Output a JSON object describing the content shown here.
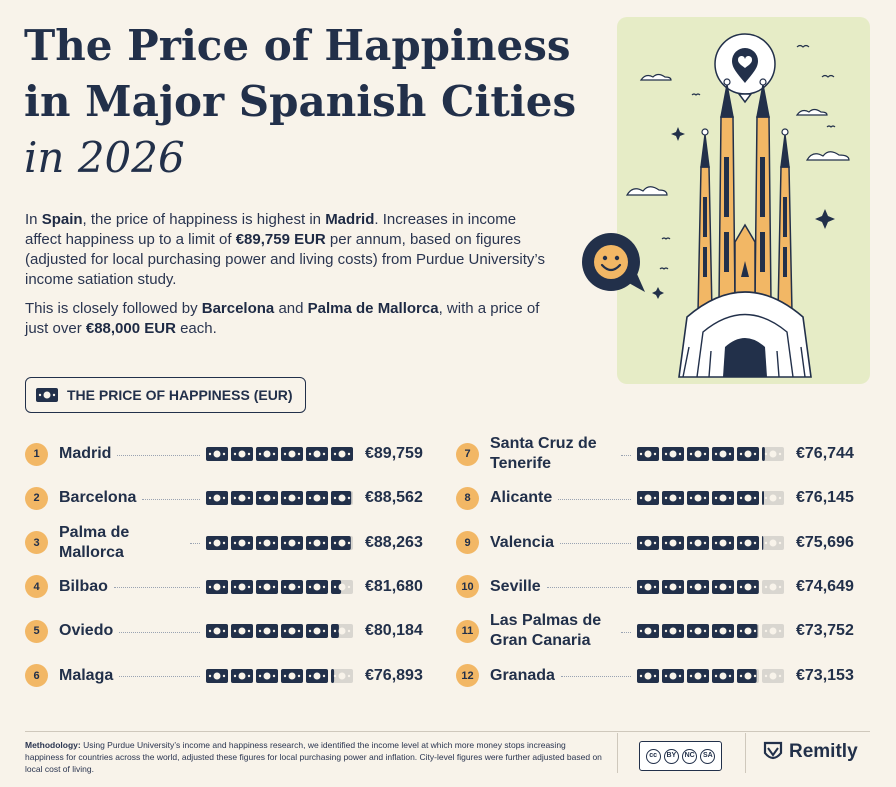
{
  "title": {
    "line1": "The Price of Happiness",
    "line2": "in Major Spanish Cities",
    "line3": "in 2026"
  },
  "intro": {
    "p1": [
      {
        "t": "In ",
        "b": false
      },
      {
        "t": "Spain",
        "b": true
      },
      {
        "t": ", the price of happiness is highest in ",
        "b": false
      },
      {
        "t": "Madrid",
        "b": true
      },
      {
        "t": ". Increases in income affect happiness up to a limit of ",
        "b": false
      },
      {
        "t": "€89,759 EUR",
        "b": true
      },
      {
        "t": " per annum, based on figures (adjusted for local purchasing power and living costs) from Purdue University’s income satiation study.",
        "b": false
      }
    ],
    "p2": [
      {
        "t": "This is closely followed by ",
        "b": false
      },
      {
        "t": "Barcelona",
        "b": true
      },
      {
        "t": " and ",
        "b": false
      },
      {
        "t": "Palma de Mallorca",
        "b": true
      },
      {
        "t": ", with a price of just over ",
        "b": false
      },
      {
        "t": "€88,000 EUR",
        "b": true
      },
      {
        "t": " each.",
        "b": false
      }
    ]
  },
  "legend": {
    "label": "THE PRICE OF HAPPINESS (EUR)",
    "icon": "banknote-icon"
  },
  "chart_data": {
    "type": "bar",
    "unit": "EUR",
    "note_max": 6,
    "note_value_full": 89759,
    "items": [
      {
        "rank": "1",
        "city": "Madrid",
        "value": 89759,
        "label": "€89,759"
      },
      {
        "rank": "2",
        "city": "Barcelona",
        "value": 88562,
        "label": "€88,562"
      },
      {
        "rank": "3",
        "city": "Palma de Mallorca",
        "value": 88263,
        "label": "€88,263"
      },
      {
        "rank": "4",
        "city": "Bilbao",
        "value": 81680,
        "label": "€81,680"
      },
      {
        "rank": "5",
        "city": "Oviedo",
        "value": 80184,
        "label": "€80,184"
      },
      {
        "rank": "6",
        "city": "Malaga",
        "value": 76893,
        "label": "€76,893"
      },
      {
        "rank": "7",
        "city": "Santa Cruz de Tenerife",
        "value": 76744,
        "label": "€76,744"
      },
      {
        "rank": "8",
        "city": "Alicante",
        "value": 76145,
        "label": "€76,145"
      },
      {
        "rank": "9",
        "city": "Valencia",
        "value": 75696,
        "label": "€75,696"
      },
      {
        "rank": "10",
        "city": "Seville",
        "value": 74649,
        "label": "€74,649"
      },
      {
        "rank": "11",
        "city": "Las Palmas de Gran Canaria",
        "value": 73752,
        "label": "€73,752"
      },
      {
        "rank": "12",
        "city": "Granada",
        "value": 73153,
        "label": "€73,153"
      }
    ]
  },
  "methodology": {
    "label": "Methodology:",
    "text": " Using Purdue University’s income and happiness research, we identified the income level at which more money stops increasing happiness for countries across the world, adjusted these figures for local purchasing power and inflation. City-level figures were further adjusted based on local cost of living."
  },
  "license": {
    "codes": [
      "BY",
      "NC",
      "SA"
    ]
  },
  "brand": {
    "name": "Remitly",
    "icon": "remitly-logo-icon"
  },
  "colors": {
    "navy": "#22304a",
    "accent": "#f2b765",
    "background": "#f8f3ea",
    "illustration_bg": "#e6ecc6",
    "faded_note": "#d9d6d0"
  }
}
